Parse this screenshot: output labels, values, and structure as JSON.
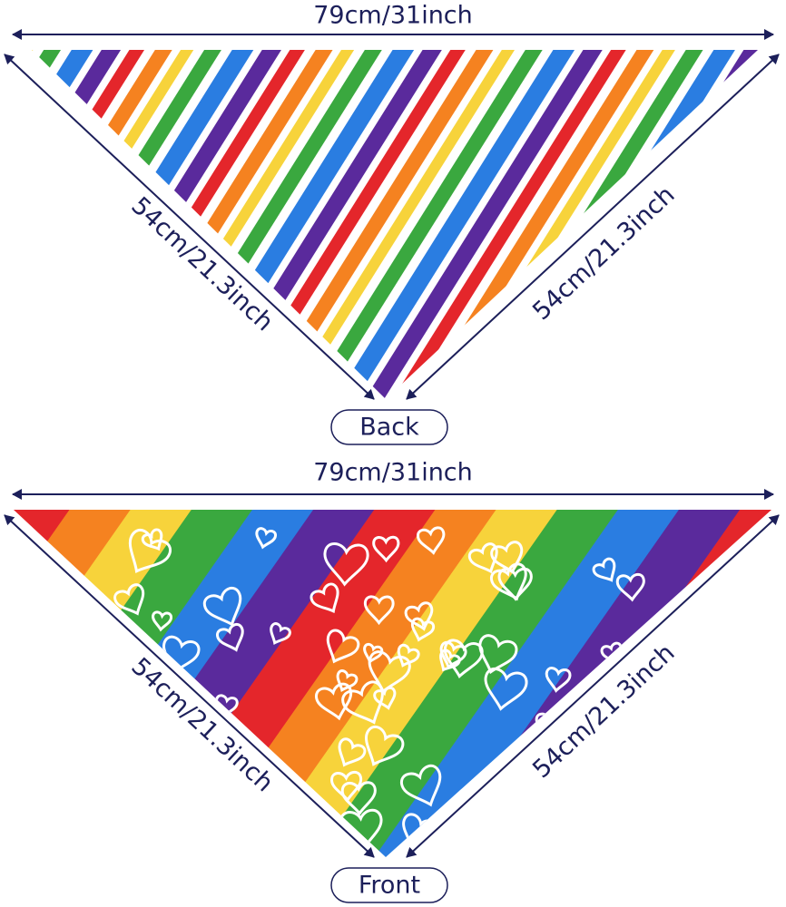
{
  "panels": [
    {
      "top_label": "79cm/31inch",
      "left_label": "54cm/21.3inch",
      "right_label": "54cm/21.3inch",
      "name": "Back"
    },
    {
      "top_label": "79cm/31inch",
      "left_label": "54cm/21.3inch",
      "right_label": "54cm/21.3inch",
      "name": "Front"
    }
  ]
}
